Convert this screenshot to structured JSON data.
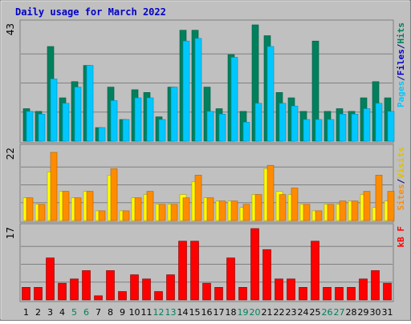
{
  "chart_data": {
    "type": "bar",
    "title": "Daily usage for March 2022",
    "categories": [
      "1",
      "2",
      "3",
      "4",
      "5",
      "6",
      "7",
      "8",
      "9",
      "10",
      "11",
      "12",
      "13",
      "14",
      "15",
      "16",
      "17",
      "18",
      "19",
      "20",
      "21",
      "22",
      "23",
      "24",
      "25",
      "26",
      "27",
      "28",
      "29",
      "30",
      "31"
    ],
    "weekend_days": [
      "5",
      "6",
      "12",
      "13",
      "19",
      "20",
      "26",
      "27"
    ],
    "grid": true,
    "panels": [
      {
        "name": "pages-files-hits",
        "ymax": 43,
        "ymax_label": "43",
        "right_labels": [
          "Pages",
          "/",
          "Files",
          "/",
          "Hits"
        ],
        "series": [
          {
            "name": "Hits",
            "color": "#00805c",
            "values": [
              12,
              11,
              35,
              16,
              22,
              28,
              5,
              20,
              8,
              19,
              18,
              9,
              20,
              41,
              41,
              20,
              12,
              32,
              11,
              43,
              39,
              18,
              16,
              11,
              37,
              11,
              12,
              11,
              16,
              22,
              16
            ]
          },
          {
            "name": "Files",
            "color": "#00c8ff",
            "values": [
              11,
              10,
              23,
              14,
              20,
              28,
              5,
              15,
              8,
              16,
              16,
              8,
              20,
              37,
              38,
              11,
              10,
              31,
              7,
              14,
              35,
              14,
              13,
              8,
              8,
              8,
              10,
              10,
              12,
              14,
              11
            ]
          }
        ]
      },
      {
        "name": "visits-sites",
        "ymax": 22,
        "ymax_label": "22",
        "right_labels": [
          "Sites",
          "/",
          "Visits"
        ],
        "series": [
          {
            "name": "Visits",
            "color": "#ffff00",
            "values": [
              7,
              5,
              15,
              9,
              7,
              9,
              3,
              14,
              3,
              7,
              8,
              5,
              5,
              8,
              12,
              7,
              6,
              6,
              4,
              8,
              16,
              9,
              8,
              5,
              3,
              5,
              5,
              6,
              8,
              4,
              6
            ]
          },
          {
            "name": "Sites",
            "color": "#ff8c00",
            "values": [
              7,
              5,
              21,
              9,
              7,
              9,
              3,
              16,
              3,
              7,
              9,
              5,
              5,
              7,
              14,
              7,
              6,
              6,
              5,
              8,
              17,
              8,
              10,
              5,
              3,
              5,
              6,
              6,
              9,
              14,
              9
            ]
          }
        ]
      },
      {
        "name": "kb-f",
        "ymax": 17,
        "ymax_label": "17",
        "right_labels": [
          "kB",
          "F"
        ],
        "series": [
          {
            "name": "kB F",
            "color": "#ff0000",
            "values": [
              3,
              3,
              10,
              4,
              5,
              7,
              1,
              7,
              2,
              6,
              5,
              2,
              6,
              14,
              14,
              4,
              3,
              10,
              3,
              17,
              12,
              5,
              5,
              3,
              14,
              3,
              3,
              3,
              5,
              7,
              4
            ]
          }
        ]
      }
    ]
  }
}
